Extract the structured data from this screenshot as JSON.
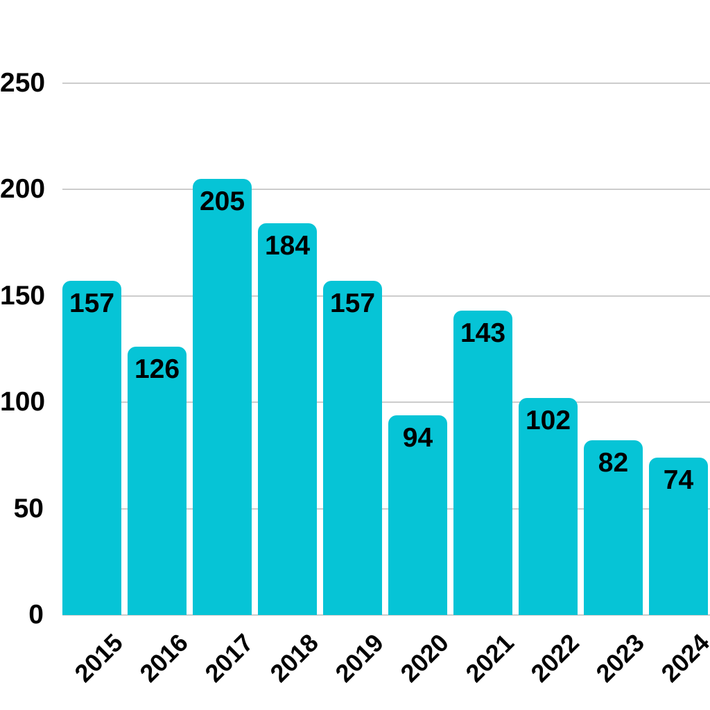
{
  "chart_data": {
    "type": "bar",
    "categories": [
      "2015",
      "2016",
      "2017",
      "2018",
      "2019",
      "2020",
      "2021",
      "2022",
      "2023",
      "2024"
    ],
    "values": [
      157,
      126,
      205,
      184,
      157,
      94,
      143,
      102,
      82,
      74
    ],
    "title": "",
    "xlabel": "",
    "ylabel": "",
    "ylim": [
      0,
      250
    ],
    "yticks": [
      0,
      50,
      100,
      150,
      200,
      250
    ],
    "grid": true,
    "legend_position": "none",
    "bar_labels_shown": true,
    "colors": {
      "bar": "#06c4d6",
      "gridline": "#cccccc",
      "text": "#000000",
      "background": "#ffffff"
    }
  }
}
